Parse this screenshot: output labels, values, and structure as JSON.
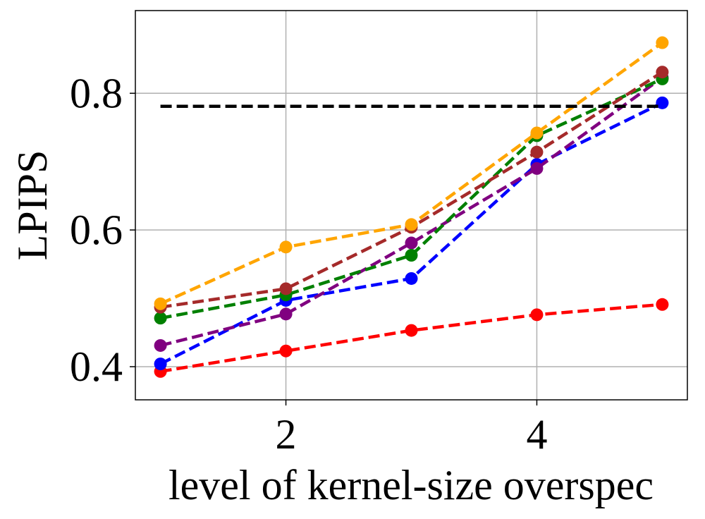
{
  "chart_data": {
    "type": "line",
    "xlabel": "level of kernel-size overspec",
    "ylabel": "LPIPS",
    "x": [
      1,
      2,
      3,
      4,
      5
    ],
    "series": [
      {
        "color": "#ff0000",
        "values": [
          0.393,
          0.423,
          0.453,
          0.476,
          0.491
        ]
      },
      {
        "color": "#0000ff",
        "values": [
          0.404,
          0.497,
          0.529,
          0.696,
          0.786
        ]
      },
      {
        "color": "#800080",
        "values": [
          0.431,
          0.477,
          0.581,
          0.69,
          0.823
        ]
      },
      {
        "color": "#008000",
        "values": [
          0.471,
          0.505,
          0.563,
          0.738,
          0.821
        ]
      },
      {
        "color": "#a52a2a",
        "values": [
          0.487,
          0.514,
          0.604,
          0.714,
          0.831
        ]
      },
      {
        "color": "#ffa500",
        "values": [
          0.492,
          0.575,
          0.608,
          0.742,
          0.874
        ]
      },
      {
        "color": "#000000",
        "marker": false,
        "values": [
          0.781,
          0.781,
          0.781,
          0.781,
          0.781
        ]
      }
    ],
    "xlim": [
      0.8,
      5.2
    ],
    "ylim": [
      0.3515,
      0.921
    ],
    "xticks": [
      2,
      4
    ],
    "yticks": [
      0.4,
      0.6,
      0.8
    ],
    "grid": true
  }
}
